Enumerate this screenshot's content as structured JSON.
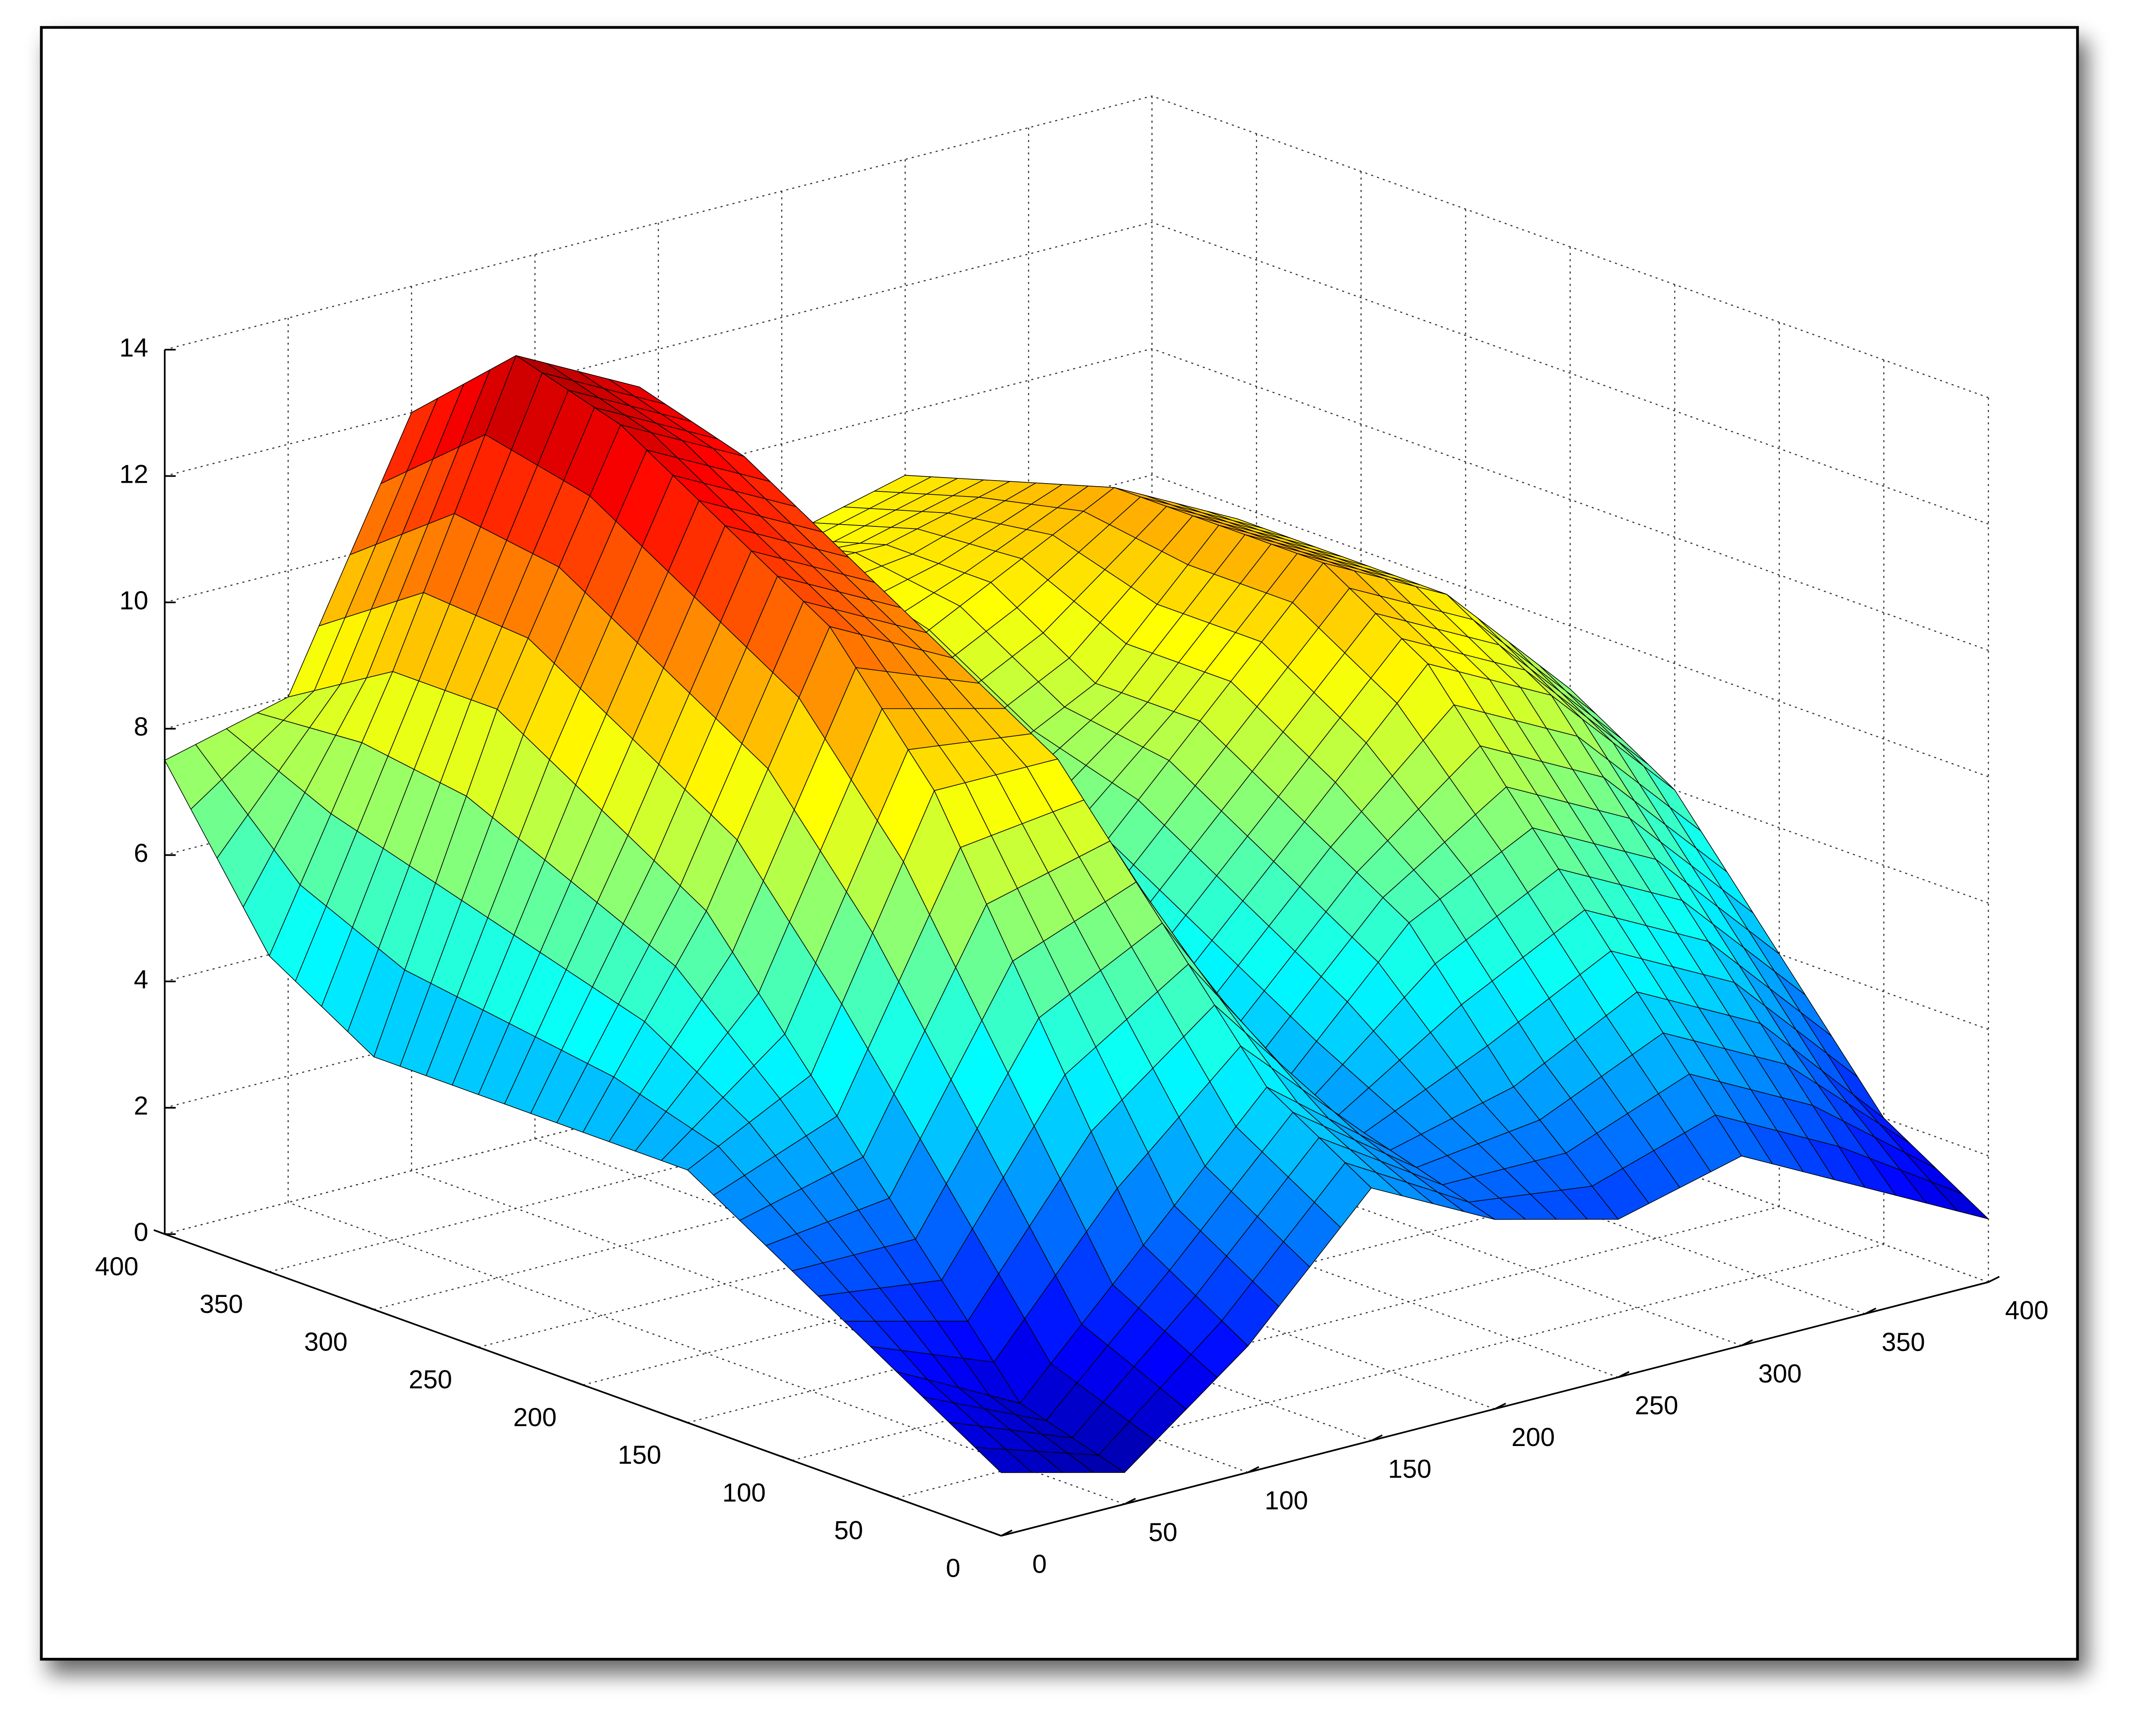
{
  "chart_data": {
    "type": "surface",
    "x": [
      0,
      50,
      100,
      150,
      200,
      250,
      300,
      350,
      400
    ],
    "y": [
      0,
      50,
      100,
      150,
      200,
      250,
      300,
      350,
      400
    ],
    "z": [
      [
        1,
        0.5,
        2,
        4,
        3,
        2.5,
        3,
        2,
        1
      ],
      [
        2,
        1,
        3,
        5,
        3.5,
        4,
        5,
        4,
        2
      ],
      [
        3,
        3,
        6,
        7,
        4,
        6,
        7,
        6,
        4
      ],
      [
        4,
        5,
        9,
        9,
        5,
        7,
        9,
        8,
        6
      ],
      [
        4,
        7,
        11,
        10,
        6,
        8,
        10,
        9,
        7
      ],
      [
        4,
        8,
        12,
        11,
        7,
        8,
        10,
        9,
        7.5
      ],
      [
        4,
        9,
        13,
        12,
        8,
        9,
        10,
        9,
        7.5
      ],
      [
        5,
        9,
        13.5,
        12.5,
        9,
        9,
        9.5,
        8.5,
        7.5
      ],
      [
        7.5,
        8,
        12,
        12,
        9,
        8.5,
        9,
        8,
        7
      ]
    ],
    "xlim": [
      0,
      400
    ],
    "ylim": [
      0,
      400
    ],
    "zlim": [
      0,
      14
    ],
    "xticks": [
      0,
      50,
      100,
      150,
      200,
      250,
      300,
      350,
      400
    ],
    "yticks": [
      0,
      50,
      100,
      150,
      200,
      250,
      300,
      350,
      400
    ],
    "zticks": [
      0,
      2,
      4,
      6,
      8,
      10,
      12,
      14
    ],
    "colormap": "jet",
    "grid": true
  }
}
